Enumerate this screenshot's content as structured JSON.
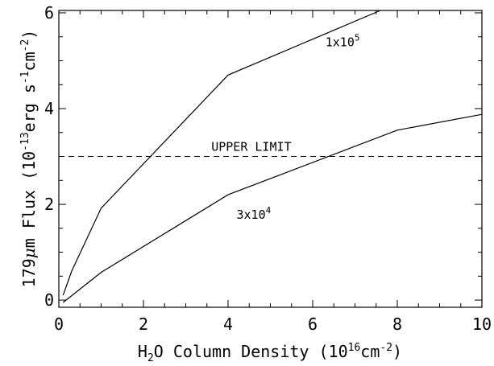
{
  "chart_data": {
    "type": "line",
    "xlabel": {
      "pre": "H",
      "sub": "2",
      "mid": "O Column Density (10",
      "sup": "16",
      "post": "cm",
      "sup2": "-2",
      "close": ")"
    },
    "ylabel": {
      "pre": "179",
      "mu": "μ",
      "mid": "m Flux (10",
      "sup1": "-13",
      "erg": "erg s",
      "sup2": "-1",
      "cm": "cm",
      "sup3": "-2",
      "close": ")"
    },
    "xlim": [
      0,
      10
    ],
    "ylim": [
      -0.15,
      6.05
    ],
    "x_ticks": [
      "0",
      "2",
      "4",
      "6",
      "8",
      "10"
    ],
    "y_ticks": [
      "0",
      "2",
      "4",
      "6"
    ],
    "x_tick_values": [
      0,
      2,
      4,
      6,
      8,
      10
    ],
    "y_tick_values": [
      0,
      2,
      4,
      6
    ],
    "series": [
      {
        "x": [
          0.1,
          0.3,
          1,
          4,
          7.6
        ],
        "y": [
          0.1,
          0.6,
          1.92,
          4.7,
          6.05
        ]
      },
      {
        "x": [
          0.1,
          1,
          4,
          8,
          10
        ],
        "y": [
          -0.05,
          0.58,
          2.2,
          3.55,
          3.88
        ]
      }
    ],
    "reference_line": {
      "y": 3.0,
      "style": "dashed",
      "label": "UPPER LIMIT"
    },
    "annotations": [
      {
        "base": "1x10",
        "exp": "5",
        "x": 6.3,
        "y": 5.3
      },
      {
        "base": "3x10",
        "exp": "4",
        "x": 4.2,
        "y": 1.7
      }
    ],
    "grid": false,
    "legend": "none"
  }
}
